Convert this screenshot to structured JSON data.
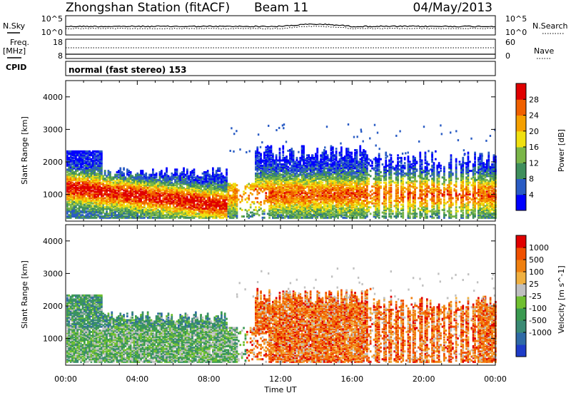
{
  "header": {
    "station": "Zhongshan Station (fitACF)",
    "beam": "Beam 11",
    "date": "04/May/2013"
  },
  "side_labels": {
    "nsky": "N.Sky",
    "nsearch": "N.Search",
    "freq": "Freq.",
    "mhz": "[MHz]",
    "nave": "Nave",
    "cpid": "CPID"
  },
  "cpid_text": "normal (fast stereo) 153",
  "chart_data": [
    {
      "type": "line",
      "panel": "noise",
      "y_left_ticks": [
        "10^5",
        "10^0"
      ],
      "y_right_ticks": [
        "10^5",
        "10^0"
      ],
      "ylabel": "N.Sky",
      "y2label": "N.Search"
    },
    {
      "type": "line",
      "panel": "frequency",
      "y_left_ticks": [
        "18",
        "8"
      ],
      "y_right_ticks": [
        "60",
        "0"
      ],
      "ylabel": "Freq. [MHz]",
      "y2label": "Nave"
    },
    {
      "type": "heatmap",
      "panel": "power",
      "ylabel": "Slant Range [km]",
      "ylim": [
        180,
        4500
      ],
      "yticks": [
        "1000",
        "2000",
        "3000",
        "4000"
      ],
      "xlim_hours": [
        0,
        24
      ],
      "colorbar_label": "Power [dB]",
      "colorbar_ticks": [
        "4",
        "8",
        "12",
        "16",
        "20",
        "24",
        "28"
      ],
      "colorbar_colors": [
        "#0000ff",
        "#2a5cc4",
        "#3f8f5c",
        "#7ab648",
        "#f0e010",
        "#f5a000",
        "#f06000",
        "#e00000"
      ]
    },
    {
      "type": "heatmap",
      "panel": "velocity",
      "ylabel": "Slant Range [km]",
      "ylim": [
        180,
        4500
      ],
      "yticks": [
        "1000",
        "2000",
        "3000",
        "4000"
      ],
      "xlim_hours": [
        0,
        24
      ],
      "colorbar_label": "Velocity [m s^-1]",
      "colorbar_ticks": [
        "1000",
        "500",
        "100",
        "25",
        "-25",
        "-100",
        "-500",
        "-1000"
      ],
      "colorbar_colors": [
        "#1e3cc8",
        "#2f6aa6",
        "#3a8a74",
        "#3a9a50",
        "#70c030",
        "#c0c0c0",
        "#f0b040",
        "#f08010",
        "#f05000",
        "#e00000"
      ]
    }
  ],
  "x_ticks": [
    "00:00",
    "04:00",
    "08:00",
    "12:00",
    "16:00",
    "20:00",
    "00:00"
  ],
  "x_label": "Time UT"
}
